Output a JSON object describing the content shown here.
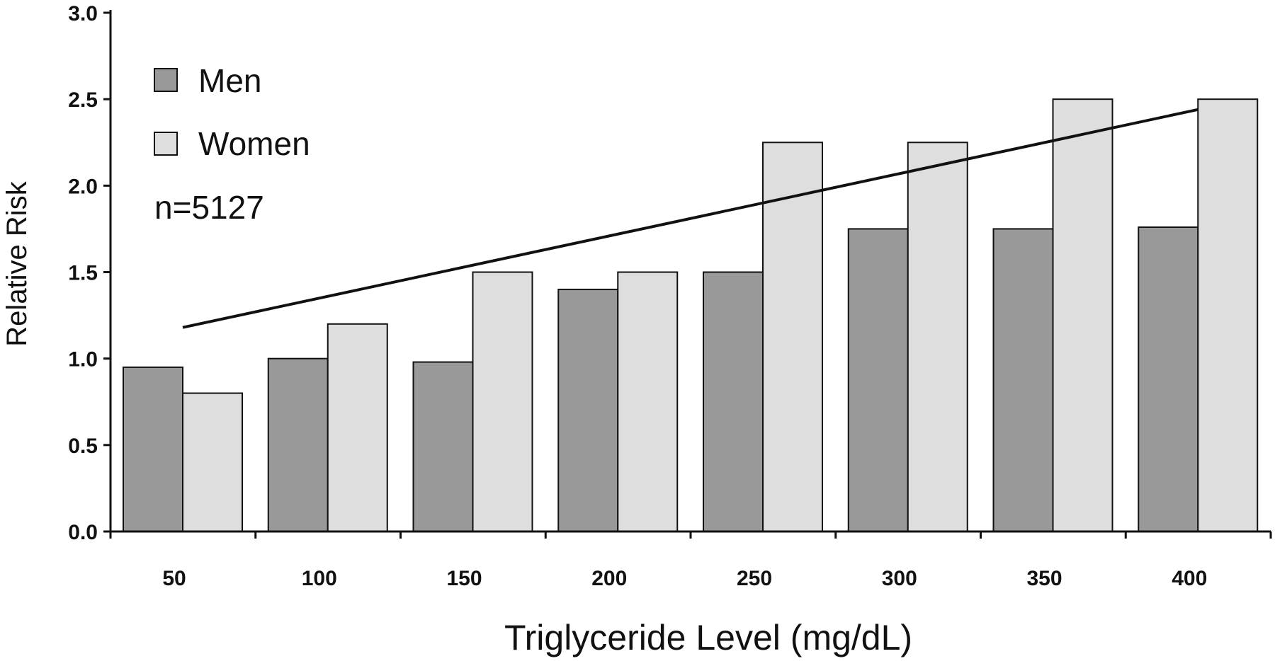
{
  "chart_data": {
    "type": "bar",
    "title": "",
    "xlabel": "Triglyceride Level (mg/dL)",
    "ylabel": "Relative Risk",
    "categories": [
      "50",
      "100",
      "150",
      "200",
      "250",
      "300",
      "350",
      "400"
    ],
    "series": [
      {
        "name": "Men",
        "color": "#999999",
        "values": [
          0.95,
          1.0,
          0.98,
          1.4,
          1.5,
          1.75,
          1.75,
          1.76
        ]
      },
      {
        "name": "Women",
        "color": "#dedede",
        "values": [
          0.8,
          1.2,
          1.5,
          1.5,
          2.25,
          2.25,
          2.5,
          2.5
        ]
      }
    ],
    "trend_line": {
      "from": {
        "x": "50",
        "y": 1.18
      },
      "to": {
        "x": "400",
        "y": 2.44
      }
    },
    "annotation": "n=5127",
    "yticks": [
      "0.0",
      "0.5",
      "1.0",
      "1.5",
      "2.0",
      "2.5",
      "3.0"
    ],
    "ylim": [
      0,
      3.0
    ],
    "legend_position": "top-left",
    "grid": false
  }
}
